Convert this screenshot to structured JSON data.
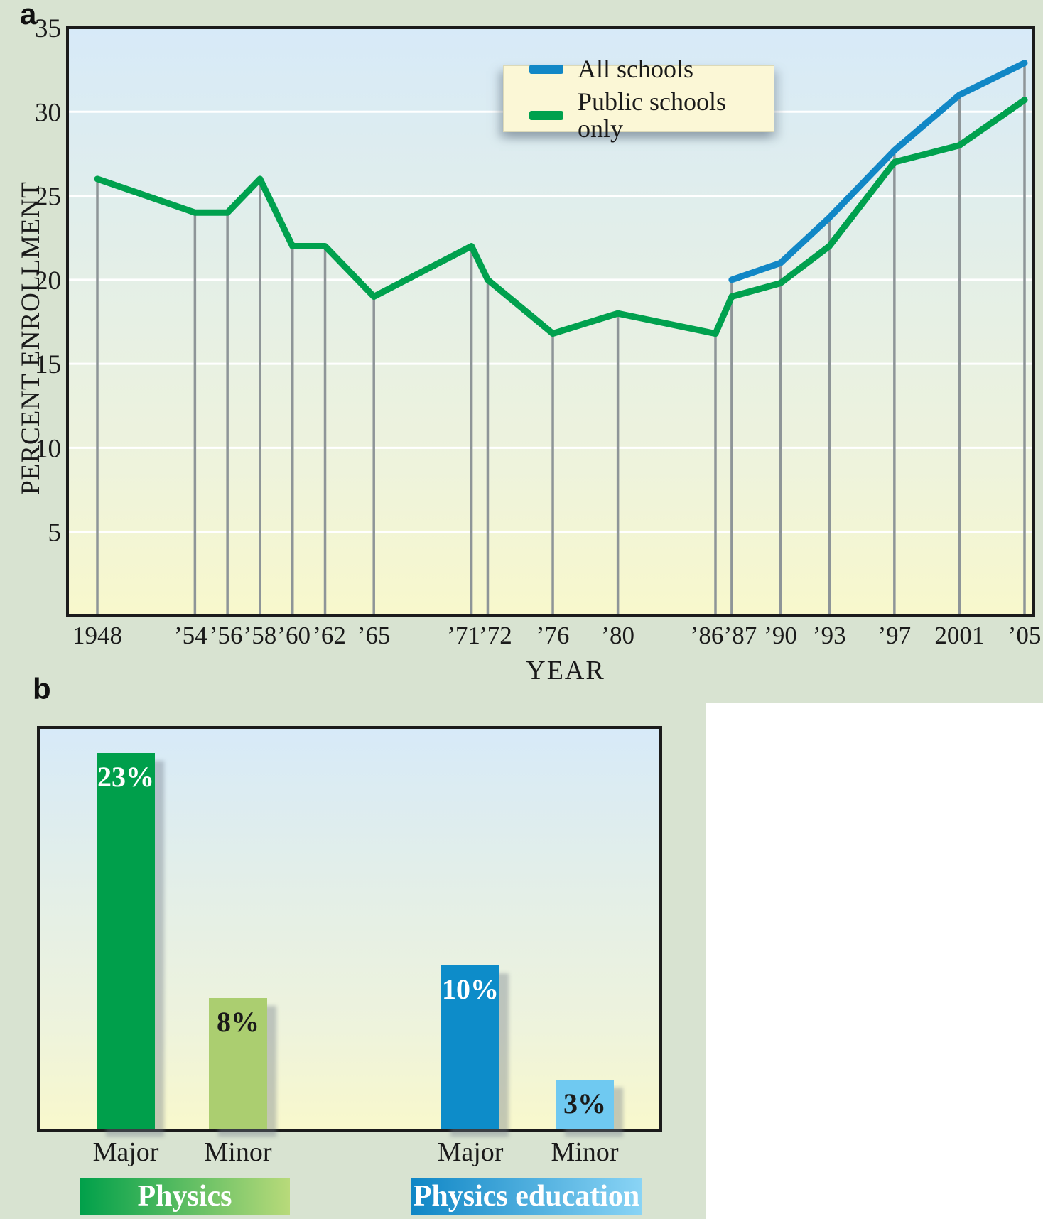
{
  "figure": {
    "panel_a_label": "a",
    "panel_b_label": "b"
  },
  "chart_data": [
    {
      "type": "line",
      "panel": "a",
      "title": "",
      "xlabel": "YEAR",
      "ylabel": "PERCENT ENROLLMENT",
      "ylim": [
        0,
        35
      ],
      "xlim": [
        1946,
        2006
      ],
      "y_ticks": [
        5,
        10,
        15,
        20,
        25,
        30,
        35
      ],
      "x_years": [
        1948,
        1954,
        1956,
        1958,
        1960,
        1962,
        1965,
        1971,
        1972,
        1976,
        1980,
        1986,
        1987,
        1990,
        1993,
        1997,
        2001,
        2005
      ],
      "x_tick_labels": [
        "1948",
        "’54",
        "’56",
        "’58",
        "’60",
        "’62",
        "’65",
        "’71",
        "’72",
        "’76",
        "’80",
        "’86",
        "’87",
        "’90",
        "’93",
        "’97",
        "2001",
        "’05"
      ],
      "grid": {
        "horizontal_on": true,
        "horizontal_color": "#ffffff",
        "vertical_on": true,
        "vertical_color": "#8E9598",
        "vertical_note": "gray drop lines from each data point to the x-axis"
      },
      "legend_position": "top-right",
      "legend_background": "#FBF7D6",
      "plot_background_gradient": [
        "#D7EAF8",
        "#F8F8CC"
      ],
      "series": [
        {
          "name": "All schools",
          "color": "#1187C6",
          "x": [
            1987,
            1990,
            1993,
            1997,
            2001,
            2005
          ],
          "values": [
            20,
            21,
            23.7,
            27.7,
            31,
            32.9
          ]
        },
        {
          "name": "Public schools only",
          "color": "#00A14E",
          "x": [
            1948,
            1954,
            1956,
            1958,
            1960,
            1962,
            1965,
            1971,
            1972,
            1976,
            1980,
            1986,
            1987,
            1990,
            1993,
            1997,
            2001,
            2005
          ],
          "values": [
            26,
            24,
            24,
            26,
            22,
            22,
            19,
            22,
            20,
            16.8,
            18,
            16.8,
            19,
            19.8,
            22,
            27,
            28,
            30.7
          ]
        }
      ]
    },
    {
      "type": "bar",
      "panel": "b",
      "title": "",
      "ylim": [
        0,
        25
      ],
      "categories": [
        "Major",
        "Minor",
        "Major",
        "Minor"
      ],
      "values": [
        23,
        8,
        10,
        3
      ],
      "value_labels": [
        "23%",
        "8%",
        "10%",
        "3%"
      ],
      "bar_colors": [
        "#009F4B",
        "#ABCE70",
        "#0D8CC9",
        "#6FC9F1"
      ],
      "value_label_colors": [
        "#ffffff",
        "#1A1A1A",
        "#ffffff",
        "#1A1A1A"
      ],
      "groups": [
        {
          "label": "Physics",
          "gradient": [
            "#00A04A",
            "#B8DA7A"
          ],
          "bars": [
            "Major",
            "Minor"
          ]
        },
        {
          "label": "Physics education",
          "gradient": [
            "#0F86C5",
            "#8AD4F5"
          ],
          "bars": [
            "Major",
            "Minor"
          ]
        }
      ]
    }
  ]
}
